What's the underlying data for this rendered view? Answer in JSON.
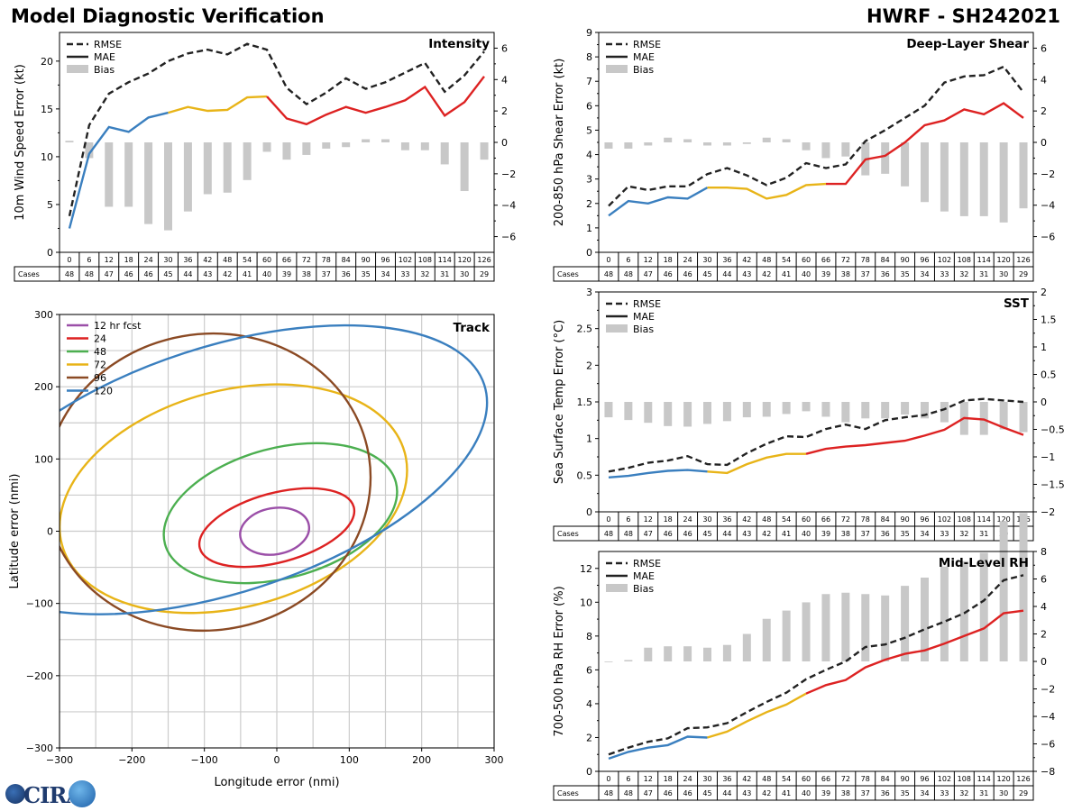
{
  "header": {
    "title": "Model Diagnostic Verification",
    "storm": "HWRF - SH242021"
  },
  "legend": {
    "rmse": "RMSE",
    "mae": "MAE",
    "bias": "Bias"
  },
  "colors": {
    "rmse": "#222222",
    "bias_bar": "#c8c8c8",
    "grid": "#cccccc",
    "seg_blue": "#3a7fbf",
    "seg_yellow": "#e8b418",
    "seg_red": "#dd2222",
    "track": [
      "#9b4fa8",
      "#dd2222",
      "#4caf50",
      "#e8b418",
      "#8b4a24",
      "#3a7fbf"
    ]
  },
  "cases_label": "Cases",
  "hours": [
    0,
    6,
    12,
    18,
    24,
    30,
    36,
    42,
    48,
    54,
    60,
    66,
    72,
    78,
    84,
    90,
    96,
    102,
    108,
    114,
    120,
    126
  ],
  "cases": [
    48,
    48,
    47,
    46,
    46,
    45,
    44,
    43,
    42,
    41,
    40,
    39,
    38,
    37,
    36,
    35,
    34,
    33,
    32,
    31,
    30,
    29
  ],
  "chart_data": [
    {
      "id": "intensity",
      "type": "line",
      "title": "Intensity",
      "ylabel": "10m Wind Speed Error (kt)",
      "ylim": [
        0,
        23
      ],
      "yticks": [
        0,
        5,
        10,
        15,
        20
      ],
      "y2lim": [
        -7,
        7
      ],
      "y2ticks": [
        -6,
        -4,
        -2,
        0,
        2,
        4,
        6
      ],
      "color_breaks": [
        30,
        60
      ],
      "cases": [
        48,
        48,
        47,
        46,
        46,
        45,
        44,
        43,
        42,
        41,
        40,
        39,
        38,
        37,
        36,
        35,
        34,
        33,
        32,
        31,
        30,
        29
      ],
      "rmse": [
        3.8,
        13.3,
        16.6,
        17.8,
        18.7,
        20.0,
        20.8,
        21.2,
        20.7,
        21.8,
        21.2,
        17.2,
        15.5,
        16.7,
        18.2,
        17.1,
        17.8,
        18.8,
        19.8,
        16.8,
        18.5,
        21.0
      ],
      "mae": [
        2.5,
        10.3,
        13.1,
        12.6,
        14.1,
        14.6,
        15.2,
        14.8,
        14.9,
        16.2,
        16.3,
        14.0,
        13.4,
        14.4,
        15.2,
        14.6,
        15.2,
        15.9,
        17.3,
        14.3,
        15.7,
        18.4
      ],
      "bias": [
        0.1,
        -1.0,
        -4.1,
        -4.1,
        -5.2,
        -5.6,
        -4.4,
        -3.3,
        -3.2,
        -2.4,
        -0.6,
        -1.1,
        -0.8,
        -0.4,
        -0.3,
        0.2,
        0.2,
        -0.5,
        -0.5,
        -1.4,
        -3.1,
        -1.1
      ]
    },
    {
      "id": "shear",
      "type": "line",
      "title": "Deep-Layer Shear",
      "ylabel": "200-850 hPa Shear Error (kt)",
      "ylim": [
        0,
        9
      ],
      "yticks": [
        0,
        1,
        2,
        3,
        4,
        5,
        6,
        7,
        8,
        9
      ],
      "y2lim": [
        -7,
        7
      ],
      "y2ticks": [
        -6,
        -4,
        -2,
        0,
        2,
        4,
        6
      ],
      "color_breaks": [
        30,
        66
      ],
      "cases": [
        48,
        48,
        47,
        46,
        46,
        45,
        44,
        43,
        42,
        41,
        40,
        39,
        38,
        37,
        36,
        35,
        34,
        33,
        32,
        31,
        30,
        29
      ],
      "rmse": [
        1.9,
        2.7,
        2.55,
        2.7,
        2.7,
        3.2,
        3.45,
        3.15,
        2.75,
        3.05,
        3.65,
        3.45,
        3.6,
        4.55,
        5.0,
        5.5,
        6.0,
        6.95,
        7.2,
        7.25,
        7.6,
        6.55
      ],
      "mae": [
        1.5,
        2.1,
        2.0,
        2.25,
        2.2,
        2.65,
        2.65,
        2.6,
        2.2,
        2.35,
        2.75,
        2.8,
        2.8,
        3.8,
        3.95,
        4.5,
        5.2,
        5.4,
        5.85,
        5.65,
        6.1,
        5.5
      ],
      "bias": [
        -0.4,
        -0.4,
        -0.2,
        0.3,
        0.2,
        -0.2,
        -0.2,
        -0.1,
        0.3,
        0.2,
        -0.5,
        -1.0,
        -0.9,
        -2.1,
        -2.0,
        -2.8,
        -3.8,
        -4.4,
        -4.7,
        -4.7,
        -5.1,
        -4.2
      ]
    },
    {
      "id": "sst",
      "type": "line",
      "title": "SST",
      "ylabel": "Sea Surface Temp Error (°C)",
      "ylim": [
        0,
        3
      ],
      "yticks": [
        0.0,
        0.5,
        1.0,
        1.5,
        2.0,
        2.5,
        3.0
      ],
      "y2lim": [
        -2,
        2
      ],
      "y2ticks": [
        -2.0,
        -1.5,
        -1.0,
        -0.5,
        0.0,
        0.5,
        1.0,
        1.5,
        2.0
      ],
      "color_breaks": [
        30,
        60
      ],
      "cases": [
        48,
        48,
        47,
        46,
        46,
        45,
        44,
        43,
        42,
        41,
        40,
        39,
        38,
        37,
        36,
        35,
        34,
        33,
        32,
        31,
        30,
        29
      ],
      "rmse": [
        0.55,
        0.6,
        0.67,
        0.7,
        0.76,
        0.65,
        0.64,
        0.8,
        0.93,
        1.03,
        1.02,
        1.13,
        1.19,
        1.13,
        1.25,
        1.29,
        1.32,
        1.4,
        1.52,
        1.54,
        1.52,
        1.5
      ],
      "mae": [
        0.47,
        0.49,
        0.53,
        0.56,
        0.57,
        0.55,
        0.53,
        0.65,
        0.74,
        0.79,
        0.79,
        0.86,
        0.89,
        0.91,
        0.94,
        0.97,
        1.04,
        1.12,
        1.28,
        1.26,
        1.15,
        1.05
      ],
      "bias": [
        -0.28,
        -0.33,
        -0.38,
        -0.44,
        -0.45,
        -0.4,
        -0.35,
        -0.28,
        -0.27,
        -0.22,
        -0.17,
        -0.27,
        -0.37,
        -0.3,
        -0.3,
        -0.23,
        -0.3,
        -0.37,
        -0.6,
        -0.6,
        -0.5,
        -0.55
      ]
    },
    {
      "id": "rh",
      "type": "line",
      "title": "Mid-Level RH",
      "ylabel": "700-500 hPa RH Error (%)",
      "ylim": [
        0,
        13
      ],
      "yticks": [
        0,
        2,
        4,
        6,
        8,
        10,
        12
      ],
      "y2lim": [
        -8,
        8
      ],
      "y2ticks": [
        -8,
        -6,
        -4,
        -2,
        0,
        2,
        4,
        6,
        8
      ],
      "color_breaks": [
        30,
        60
      ],
      "cases": [
        48,
        48,
        47,
        46,
        46,
        45,
        44,
        43,
        42,
        41,
        40,
        39,
        38,
        37,
        36,
        35,
        34,
        33,
        32,
        31,
        30,
        29
      ],
      "rmse": [
        1.0,
        1.4,
        1.75,
        1.95,
        2.55,
        2.6,
        2.85,
        3.5,
        4.1,
        4.65,
        5.45,
        6.0,
        6.5,
        7.35,
        7.5,
        7.9,
        8.4,
        8.85,
        9.35,
        10.1,
        11.3,
        11.6
      ],
      "mae": [
        0.75,
        1.15,
        1.4,
        1.55,
        2.05,
        2.0,
        2.35,
        2.95,
        3.5,
        3.95,
        4.6,
        5.1,
        5.4,
        6.15,
        6.6,
        6.95,
        7.15,
        7.55,
        8.0,
        8.45,
        9.35,
        9.5
      ],
      "bias": [
        0.0,
        0.1,
        1.0,
        1.1,
        1.1,
        1.0,
        1.2,
        2.0,
        3.1,
        3.7,
        4.3,
        4.9,
        5.0,
        4.9,
        4.8,
        5.5,
        6.1,
        6.9,
        7.3,
        7.9,
        10.2,
        10.8
      ]
    },
    {
      "id": "track",
      "type": "scatter",
      "title": "Track",
      "xlabel": "Longitude error (nmi)",
      "ylabel": "Latitude error (nmi)",
      "xlim": [
        -300,
        300
      ],
      "ylim": [
        -300,
        300
      ],
      "xticks": [
        -300,
        -200,
        -100,
        0,
        100,
        200,
        300
      ],
      "yticks": [
        -300,
        -200,
        -100,
        0,
        100,
        200,
        300
      ],
      "ellipses": [
        {
          "label": "12 hr fcst",
          "cx": -3,
          "cy": 0,
          "rx": 48,
          "ry": 32,
          "angle": -10
        },
        {
          "label": "24",
          "cx": 0,
          "cy": 5,
          "rx": 110,
          "ry": 48,
          "angle": -15
        },
        {
          "label": "48",
          "cx": 5,
          "cy": 25,
          "rx": 165,
          "ry": 90,
          "angle": -15
        },
        {
          "label": "72",
          "cx": -60,
          "cy": 45,
          "rx": 245,
          "ry": 150,
          "angle": -15
        },
        {
          "label": "96",
          "cx": -95,
          "cy": 68,
          "rx": 225,
          "ry": 205,
          "angle": -10
        },
        {
          "label": "120",
          "cx": -75,
          "cy": 85,
          "rx": 380,
          "ry": 170,
          "angle": -18
        }
      ]
    }
  ]
}
